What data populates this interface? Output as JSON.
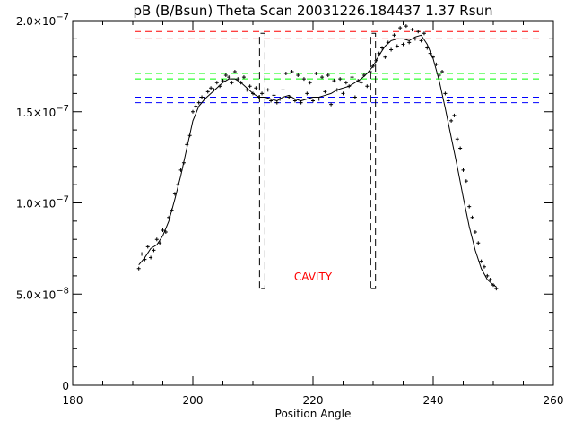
{
  "chart_data": {
    "type": "scatter",
    "title": "pB (B/Bsun) Theta Scan 20031226.184437 1.37 Rsun",
    "xlabel": "Position Angle",
    "ylabel": "",
    "xlim": [
      180,
      260
    ],
    "ylim": [
      0,
      2.0
    ],
    "y_multiplier": 1e-07,
    "x_major_ticks": [
      180,
      200,
      220,
      240,
      260
    ],
    "x_tick_labels": [
      "180",
      "200",
      "220",
      "240",
      "260"
    ],
    "x_minor_step": 5,
    "y_major_ticks": [
      0,
      0.5,
      1.0,
      1.5,
      2.0
    ],
    "y_tick_labels": [
      {
        "mant": "0",
        "exp": ""
      },
      {
        "mant": "5.0×10",
        "exp": "−8"
      },
      {
        "mant": "1.0×10",
        "exp": "−7"
      },
      {
        "mant": "1.5×10",
        "exp": "−7"
      },
      {
        "mant": "2.0×10",
        "exp": "−7"
      }
    ],
    "y_minor_step": 0.1,
    "annotation": {
      "text": "CAVITY",
      "x": 220,
      "y": 0.6,
      "color": "#ff0000"
    },
    "reference_lines": [
      {
        "y": 1.94,
        "color": "#ff0000",
        "x_range": [
          190.3,
          258.5
        ]
      },
      {
        "y": 1.9,
        "color": "#ff0000",
        "x_range": [
          190.3,
          258.5
        ]
      },
      {
        "y": 1.71,
        "color": "#00ff00",
        "x_range": [
          190.3,
          258.5
        ]
      },
      {
        "y": 1.68,
        "color": "#00ff00",
        "x_range": [
          190.3,
          258.5
        ]
      },
      {
        "y": 1.58,
        "color": "#0000ff",
        "x_range": [
          190.3,
          258.5
        ]
      },
      {
        "y": 1.55,
        "color": "#0000ff",
        "x_range": [
          190.3,
          258.5
        ]
      }
    ],
    "cavity_boundaries": [
      {
        "x_range": [
          211.1,
          212.0
        ],
        "y_range": [
          0.53,
          1.93
        ]
      },
      {
        "x_range": [
          229.6,
          230.4
        ],
        "y_range": [
          0.53,
          1.93
        ]
      }
    ],
    "smooth_curve": {
      "x": [
        191,
        192,
        193,
        194,
        195,
        196,
        197,
        198,
        199,
        200,
        201,
        202,
        203,
        204,
        205,
        206,
        207,
        208,
        209,
        210,
        211,
        212,
        213,
        214,
        215,
        216,
        217,
        218,
        219,
        220,
        221,
        222,
        223,
        224,
        225,
        226,
        227,
        228,
        229,
        230,
        231,
        232,
        233,
        234,
        235,
        236,
        237,
        238,
        239,
        240,
        241,
        242,
        243,
        244,
        245,
        246,
        247,
        248,
        249,
        250,
        250.5
      ],
      "y": [
        0.66,
        0.7,
        0.75,
        0.77,
        0.82,
        0.9,
        1.02,
        1.15,
        1.3,
        1.45,
        1.53,
        1.57,
        1.6,
        1.63,
        1.66,
        1.68,
        1.68,
        1.66,
        1.63,
        1.6,
        1.58,
        1.58,
        1.57,
        1.56,
        1.58,
        1.59,
        1.57,
        1.56,
        1.57,
        1.58,
        1.58,
        1.59,
        1.6,
        1.62,
        1.63,
        1.64,
        1.66,
        1.68,
        1.71,
        1.75,
        1.81,
        1.86,
        1.89,
        1.9,
        1.9,
        1.89,
        1.91,
        1.92,
        1.87,
        1.79,
        1.67,
        1.52,
        1.36,
        1.2,
        1.03,
        0.87,
        0.74,
        0.64,
        0.58,
        0.55,
        0.54
      ]
    },
    "scatter": {
      "x": [
        191,
        191.5,
        192,
        192.5,
        193,
        193.5,
        194,
        194.5,
        195,
        195.5,
        196,
        196.5,
        197,
        197.5,
        198,
        198.5,
        199,
        199.5,
        200,
        200.5,
        201,
        201.5,
        202,
        202.5,
        203,
        203.5,
        204,
        204.5,
        205,
        205.5,
        206,
        206.5,
        207,
        207.5,
        208,
        208.5,
        209,
        209.5,
        210,
        210.5,
        211,
        211.5,
        212,
        212.5,
        213,
        213.5,
        214,
        214.5,
        215,
        215.5,
        216,
        216.5,
        217,
        217.5,
        218,
        218.5,
        219,
        219.5,
        220,
        220.5,
        221,
        221.5,
        222,
        222.5,
        223,
        223.5,
        224,
        224.5,
        225,
        225.5,
        226,
        226.5,
        227,
        227.5,
        228,
        228.5,
        229,
        229.5,
        230,
        230.5,
        231,
        231.5,
        232,
        232.5,
        233,
        233.5,
        234,
        234.5,
        235,
        235.5,
        236,
        236.5,
        237,
        237.5,
        238,
        238.5,
        239,
        239.5,
        240,
        240.5,
        241,
        241.5,
        242,
        242.5,
        243,
        243.5,
        244,
        244.5,
        245,
        245.5,
        246,
        246.5,
        247,
        247.5,
        248,
        248.5,
        249,
        249.5,
        250,
        250.5
      ],
      "y": [
        0.64,
        0.72,
        0.69,
        0.76,
        0.7,
        0.74,
        0.8,
        0.78,
        0.85,
        0.84,
        0.92,
        0.96,
        1.05,
        1.1,
        1.18,
        1.22,
        1.32,
        1.37,
        1.5,
        1.53,
        1.55,
        1.58,
        1.57,
        1.61,
        1.63,
        1.62,
        1.66,
        1.64,
        1.67,
        1.7,
        1.69,
        1.66,
        1.72,
        1.68,
        1.66,
        1.69,
        1.62,
        1.64,
        1.6,
        1.63,
        1.58,
        1.6,
        1.57,
        1.62,
        1.56,
        1.59,
        1.55,
        1.57,
        1.62,
        1.71,
        1.58,
        1.72,
        1.56,
        1.7,
        1.55,
        1.68,
        1.6,
        1.66,
        1.56,
        1.71,
        1.57,
        1.69,
        1.61,
        1.7,
        1.54,
        1.67,
        1.62,
        1.68,
        1.6,
        1.66,
        1.64,
        1.69,
        1.58,
        1.67,
        1.66,
        1.7,
        1.64,
        1.72,
        1.75,
        1.78,
        1.82,
        1.85,
        1.8,
        1.88,
        1.84,
        1.92,
        1.86,
        1.96,
        1.87,
        1.97,
        1.88,
        1.95,
        1.9,
        1.94,
        1.89,
        1.93,
        1.85,
        1.82,
        1.8,
        1.76,
        1.7,
        1.72,
        1.6,
        1.56,
        1.45,
        1.48,
        1.35,
        1.3,
        1.18,
        1.12,
        0.98,
        0.92,
        0.84,
        0.78,
        0.68,
        0.65,
        0.6,
        0.58,
        0.55,
        0.53
      ]
    }
  }
}
